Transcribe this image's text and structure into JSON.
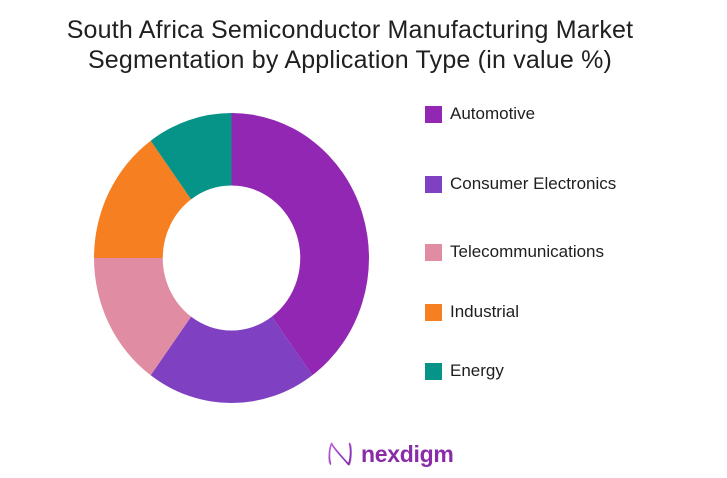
{
  "title": {
    "line1": "South Africa Semiconductor Manufacturing Market",
    "line2": "Segmentation by Application Type (in value %)"
  },
  "chart_data": {
    "type": "pie",
    "variant": "donut",
    "title": "South Africa Semiconductor Manufacturing Market Segmentation by Application Type (in value %)",
    "unit": "percent of value",
    "categories": [
      "Automotive",
      "Consumer Electronics",
      "Telecommunications",
      "Industrial",
      "Energy"
    ],
    "values": [
      40,
      20,
      15,
      15,
      10
    ],
    "colors": [
      "#9227B3",
      "#7F41C2",
      "#E08DA3",
      "#F57F21",
      "#079488"
    ],
    "start_angle_deg": 0,
    "direction": "clockwise",
    "inner_radius_ratio": 0.5,
    "legend_position": "right",
    "data_labels_on_chart": false
  },
  "legend": {
    "items": [
      {
        "label": "Automotive",
        "color": "#9227B3"
      },
      {
        "label": "Consumer Electronics",
        "color": "#7F41C2"
      },
      {
        "label": "Telecommunications",
        "color": "#E08DA3"
      },
      {
        "label": "Industrial",
        "color": "#F57F21"
      },
      {
        "label": "Energy",
        "color": "#079488"
      }
    ]
  },
  "footer": {
    "brand": "nexdigm",
    "brand_color": "#8A2BA8",
    "logo_gradient": [
      "#C45FE8",
      "#7B1FA2"
    ]
  }
}
